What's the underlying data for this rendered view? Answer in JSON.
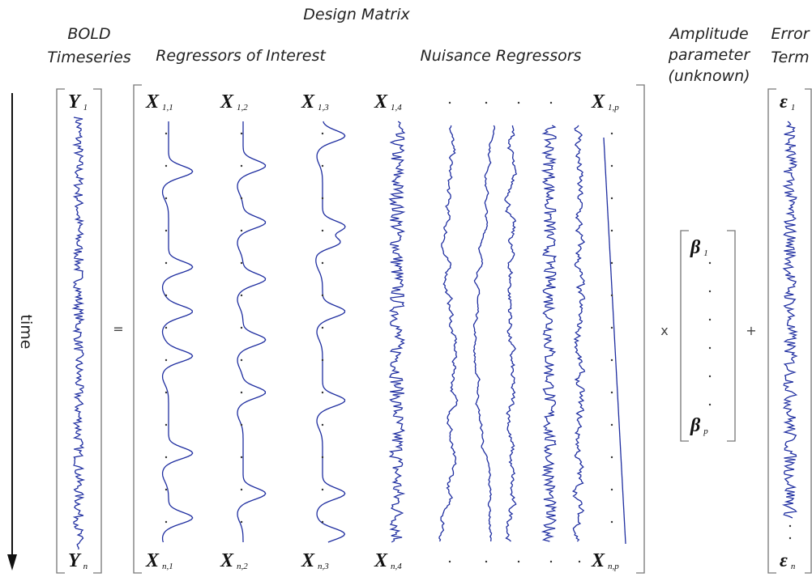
{
  "header": {
    "title": "Design Matrix"
  },
  "labels": {
    "bold": [
      "BOLD",
      "Timeseries"
    ],
    "regressors_of_interest": "Regressors of Interest",
    "nuisance_regressors": "Nuisance Regressors",
    "amplitude": [
      "Amplitude",
      "parameter",
      "(unknown)"
    ],
    "error": [
      "Error",
      "Term"
    ],
    "time": "time"
  },
  "operators": {
    "equals": "=",
    "times": "x",
    "plus": "+"
  },
  "bold_vector": [
    {
      "symbol": "Y",
      "sub": "1"
    },
    {
      "symbol": "Y",
      "sub": "n"
    }
  ],
  "design_top": [
    {
      "symbol": "X",
      "sub": "1,1"
    },
    {
      "symbol": "X",
      "sub": "1,2"
    },
    {
      "symbol": "X",
      "sub": "1,3"
    },
    {
      "symbol": "X",
      "sub": "1,4"
    },
    {
      "symbol": "X",
      "sub": "1,p"
    }
  ],
  "design_bottom": [
    {
      "symbol": "X",
      "sub": "n,1"
    },
    {
      "symbol": "X",
      "sub": "n,2"
    },
    {
      "symbol": "X",
      "sub": "n,3"
    },
    {
      "symbol": "X",
      "sub": "n,4"
    },
    {
      "symbol": "X",
      "sub": "n,p"
    }
  ],
  "beta_vector": [
    {
      "symbol": "β",
      "sub": "1"
    },
    {
      "symbol": "β",
      "sub": "p"
    }
  ],
  "error_vector": [
    {
      "symbol": "ε",
      "sub": "1"
    },
    {
      "symbol": "ε",
      "sub": "n"
    }
  ]
}
